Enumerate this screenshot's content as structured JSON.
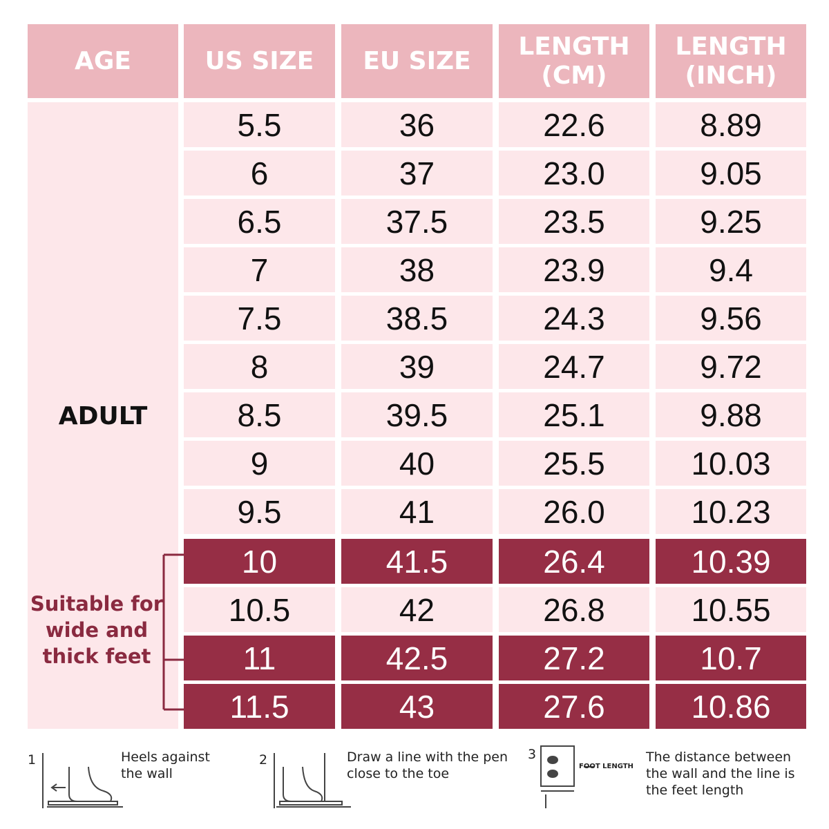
{
  "header": {
    "columns": [
      "AGE",
      "US SIZE",
      "EU SIZE",
      "LENGTH (CM)",
      "LENGTH (INCH)"
    ]
  },
  "table": {
    "age_label": "ADULT",
    "wide_note": "Suitable for wide and thick feet",
    "rows": [
      {
        "cells": [
          "5.5",
          "36",
          "22.6",
          "8.89"
        ],
        "highlight": false
      },
      {
        "cells": [
          "6",
          "37",
          "23.0",
          "9.05"
        ],
        "highlight": false
      },
      {
        "cells": [
          "6.5",
          "37.5",
          "23.5",
          "9.25"
        ],
        "highlight": false
      },
      {
        "cells": [
          "7",
          "38",
          "23.9",
          "9.4"
        ],
        "highlight": false
      },
      {
        "cells": [
          "7.5",
          "38.5",
          "24.3",
          "9.56"
        ],
        "highlight": false
      },
      {
        "cells": [
          "8",
          "39",
          "24.7",
          "9.72"
        ],
        "highlight": false
      },
      {
        "cells": [
          "8.5",
          "39.5",
          "25.1",
          "9.88"
        ],
        "highlight": false
      },
      {
        "cells": [
          "9",
          "40",
          "25.5",
          "10.03"
        ],
        "highlight": false
      },
      {
        "cells": [
          "9.5",
          "41",
          "26.0",
          "10.23"
        ],
        "highlight": false
      },
      {
        "cells": [
          "10",
          "41.5",
          "26.4",
          "10.39"
        ],
        "highlight": true
      },
      {
        "cells": [
          "10.5",
          "42",
          "26.8",
          "10.55"
        ],
        "highlight": false
      },
      {
        "cells": [
          "11",
          "42.5",
          "27.2",
          "10.7"
        ],
        "highlight": true
      },
      {
        "cells": [
          "11.5",
          "43",
          "27.6",
          "10.86"
        ],
        "highlight": true
      }
    ]
  },
  "steps": [
    {
      "number": "1",
      "text": "Heels against the wall"
    },
    {
      "number": "2",
      "text": "Draw a line with the pen close to the toe"
    },
    {
      "number": "3",
      "icon_label": "FOOT LENGTH",
      "text": "The distance between the wall and the line is the feet length"
    }
  ]
}
